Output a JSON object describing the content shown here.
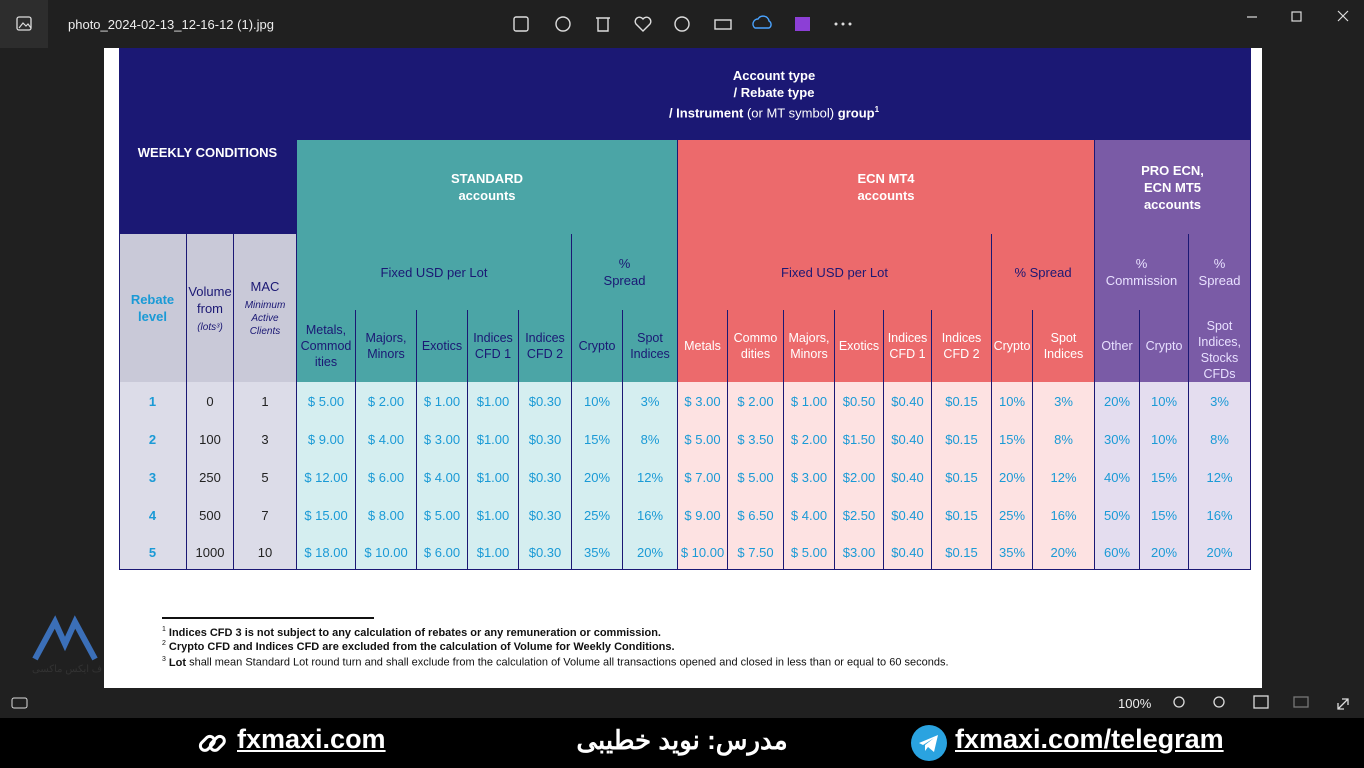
{
  "window": {
    "title": "photo_2024-02-13_12-16-12 (1).jpg",
    "zoom": "100%"
  },
  "table": {
    "title_lines": [
      [
        "Account type"
      ],
      [
        "/ Rebate type"
      ],
      [
        "/ Instrument",
        " (or MT symbol) ",
        "group",
        "1"
      ]
    ],
    "weekly": "WEEKLY CONDITIONS",
    "groups": [
      "STANDARD\naccounts",
      "ECN MT4\naccounts",
      "PRO ECN,\nECN MT5\naccounts"
    ],
    "subgroups": [
      "Fixed USD per Lot",
      "%\nSpread",
      "Fixed USD per Lot",
      "% Spread",
      "%\nCommission",
      "%\nSpread"
    ],
    "left_headers": [
      {
        "label": "Rebate\nlevel"
      },
      {
        "label": "Volume\nfrom",
        "note": "(lots³)"
      },
      {
        "label": "MAC",
        "note": "Minimum\nActive\nClients"
      }
    ],
    "columns": [
      "Metals,\nCommod\nities",
      "Majors,\nMinors",
      "Exotics",
      "Indices\nCFD 1",
      "Indices\nCFD 2",
      "Crypto",
      "Spot\nIndices",
      "Metals",
      "Commo\ndities",
      "Majors,\nMinors",
      "Exotics",
      "Indices\nCFD 1",
      "Indices\nCFD 2",
      "Crypto",
      "Spot\nIndices",
      "Other",
      "Crypto",
      "Spot\nIndices,\nStocks\nCFDs"
    ],
    "rows": [
      [
        "1",
        "0",
        "1",
        "$ 5.00",
        "$ 2.00",
        "$ 1.00",
        "$1.00",
        "$0.30",
        "10%",
        "3%",
        "$ 3.00",
        "$ 2.00",
        "$ 1.00",
        "$0.50",
        "$0.40",
        "$0.15",
        "10%",
        "3%",
        "20%",
        "10%",
        "3%"
      ],
      [
        "2",
        "100",
        "3",
        "$ 9.00",
        "$ 4.00",
        "$ 3.00",
        "$1.00",
        "$0.30",
        "15%",
        "8%",
        "$ 5.00",
        "$ 3.50",
        "$ 2.00",
        "$1.50",
        "$0.40",
        "$0.15",
        "15%",
        "8%",
        "30%",
        "10%",
        "8%"
      ],
      [
        "3",
        "250",
        "5",
        "$ 12.00",
        "$ 6.00",
        "$ 4.00",
        "$1.00",
        "$0.30",
        "20%",
        "12%",
        "$ 7.00",
        "$ 5.00",
        "$ 3.00",
        "$2.00",
        "$0.40",
        "$0.15",
        "20%",
        "12%",
        "40%",
        "15%",
        "12%"
      ],
      [
        "4",
        "500",
        "7",
        "$ 15.00",
        "$ 8.00",
        "$ 5.00",
        "$1.00",
        "$0.30",
        "25%",
        "16%",
        "$ 9.00",
        "$ 6.50",
        "$ 4.00",
        "$2.50",
        "$0.40",
        "$0.15",
        "25%",
        "16%",
        "50%",
        "15%",
        "16%"
      ],
      [
        "5",
        "1000",
        "10",
        "$ 18.00",
        "$ 10.00",
        "$ 6.00",
        "$1.00",
        "$0.30",
        "35%",
        "20%",
        "$ 10.00",
        "$ 7.50",
        "$ 5.00",
        "$3.00",
        "$0.40",
        "$0.15",
        "35%",
        "20%",
        "60%",
        "20%",
        "20%"
      ]
    ]
  },
  "footnotes": [
    {
      "marker": "1",
      "bold": "Indices CFD 3 is not subject to any calculation of rebates or any remuneration or commission."
    },
    {
      "marker": "2",
      "bold": "Crypto CFD and Indices CFD are excluded from the calculation of Volume for Weekly Conditions."
    },
    {
      "marker": "3",
      "bold": "Lot",
      "text": " shall mean Standard Lot round turn and shall exclude from the calculation of Volume all transactions opened and closed in less than or equal to 60 seconds."
    }
  ],
  "watermark": "ف ایکس ماکسی",
  "banner": {
    "site": "fxmaxi.com",
    "teacher": "مدرس: نوید خطیبی",
    "telegram": "fxmaxi.com/telegram"
  }
}
